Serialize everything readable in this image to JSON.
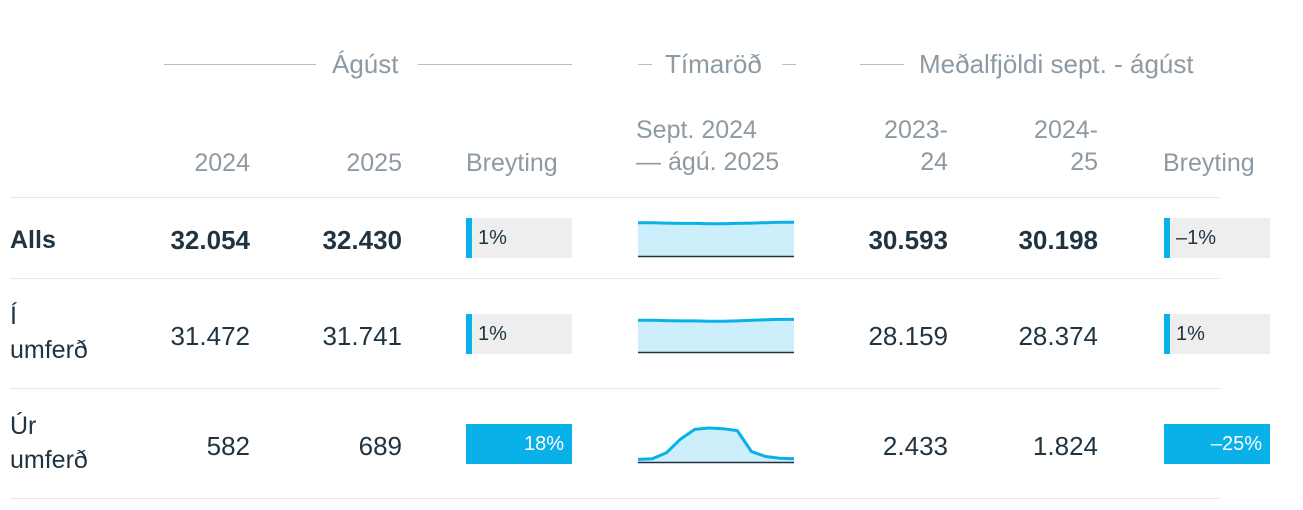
{
  "groups": {
    "month": "Ágúst",
    "timeseries": "Tímaröð",
    "average": "Meðalfjöldi sept. - ágúst"
  },
  "columns": {
    "y2024": "2024",
    "y2025": "2025",
    "change": "Breyting",
    "spark": "Sept. 2024\n— ágú. 2025",
    "p1": "2023-\n24",
    "p2": "2024-\n25",
    "change2": "Breyting"
  },
  "rows": [
    {
      "label": "Alls",
      "v2024": "32.054",
      "v2025": "32.430",
      "change": {
        "pct": 1,
        "text": "1%"
      },
      "spark": [
        0.9,
        0.9,
        0.89,
        0.88,
        0.88,
        0.87,
        0.87,
        0.88,
        0.89,
        0.9,
        0.91,
        0.91
      ],
      "p1": "30.593",
      "p2": "30.198",
      "change2": {
        "pct": -1,
        "text": "–1%"
      }
    },
    {
      "label": "Í\numferð",
      "v2024": "31.472",
      "v2025": "31.741",
      "change": {
        "pct": 1,
        "text": "1%"
      },
      "spark": [
        0.86,
        0.86,
        0.85,
        0.84,
        0.84,
        0.83,
        0.83,
        0.84,
        0.86,
        0.87,
        0.88,
        0.88
      ],
      "p1": "28.159",
      "p2": "28.374",
      "change2": {
        "pct": 1,
        "text": "1%"
      }
    },
    {
      "label": "Úr\numferð",
      "v2024": "582",
      "v2025": "689",
      "change": {
        "pct": 18,
        "text": "18%"
      },
      "spark": [
        0.07,
        0.09,
        0.25,
        0.62,
        0.88,
        0.92,
        0.9,
        0.85,
        0.28,
        0.15,
        0.1,
        0.09
      ],
      "p1": "2.433",
      "p2": "1.824",
      "change2": {
        "pct": -25,
        "text": "–25%"
      }
    }
  ],
  "colors": {
    "accent": "#09b1e8",
    "sparkFill": "#cdeefb",
    "barTrack": "#eeeeee",
    "text": "#1f3340",
    "muted": "#8e9aa3"
  }
}
